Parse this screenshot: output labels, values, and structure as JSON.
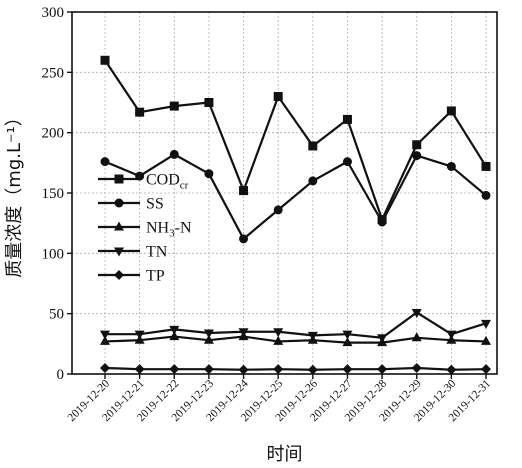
{
  "chart_data": {
    "type": "line",
    "title": "",
    "xlabel": "时间",
    "ylabel": "质量浓度（mg.L⁻¹）",
    "categories": [
      "2019-12-20",
      "2019-12-21",
      "2019-12-22",
      "2019-12-23",
      "2019-12-24",
      "2019-12-25",
      "2019-12-26",
      "2019-12-27",
      "2019-12-28",
      "2019-12-29",
      "2019-12-30",
      "2019-12-31"
    ],
    "ylim": [
      0,
      300
    ],
    "yticks": [
      0,
      50,
      100,
      150,
      200,
      250,
      300
    ],
    "grid": true,
    "legend_position": "middle-left",
    "series": [
      {
        "name": "CODcr",
        "label_main": "COD",
        "label_sub": "cr",
        "marker": "square",
        "values": [
          260,
          217,
          222,
          225,
          152,
          230,
          189,
          211,
          128,
          190,
          218,
          172
        ]
      },
      {
        "name": "SS",
        "label_main": "SS",
        "label_sub": "",
        "marker": "circle",
        "values": [
          176,
          164,
          182,
          166,
          112,
          136,
          160,
          176,
          126,
          181,
          172,
          148
        ]
      },
      {
        "name": "NH3-N",
        "label_main": "NH",
        "label_sub": "3",
        "label_tail": "-N",
        "marker": "triangle-up",
        "values": [
          27,
          28,
          31,
          28,
          31,
          27,
          28,
          26,
          26,
          30,
          28,
          27
        ]
      },
      {
        "name": "TN",
        "label_main": "TN",
        "label_sub": "",
        "marker": "triangle-down",
        "values": [
          33,
          33,
          37,
          34,
          35,
          35,
          32,
          33,
          30,
          51,
          33,
          42
        ]
      },
      {
        "name": "TP",
        "label_main": "TP",
        "label_sub": "",
        "marker": "diamond",
        "values": [
          5,
          4,
          4,
          4,
          3.5,
          4,
          3.5,
          4,
          4,
          5,
          3.5,
          4
        ]
      }
    ]
  },
  "colors": {
    "line": "#111111",
    "grid": "#b0b0b0"
  }
}
